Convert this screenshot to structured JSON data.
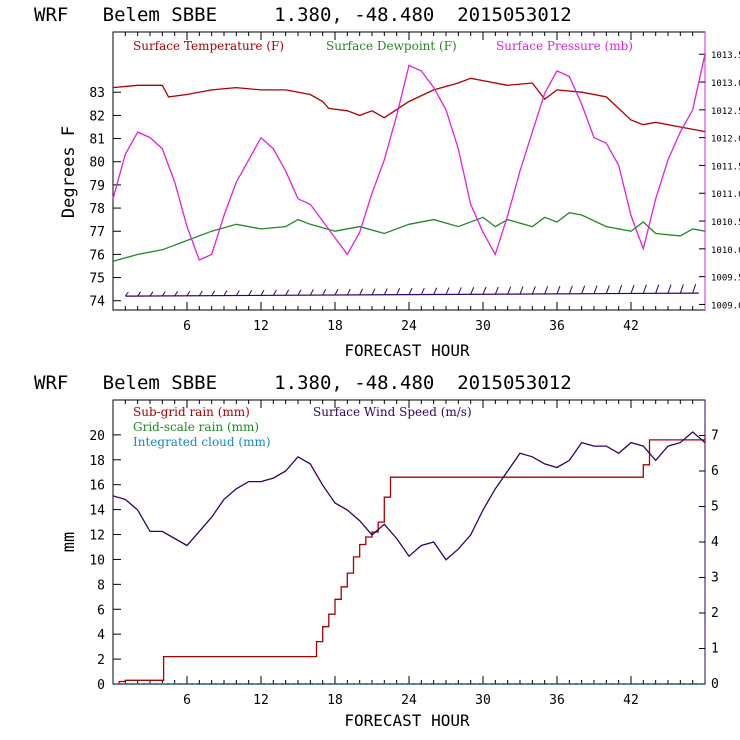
{
  "chart_data": [
    {
      "type": "line",
      "title": "WRF   Belem SBBE     1.380, -48.480  2015053012",
      "xlabel": "FORECAST HOUR",
      "ylabel": "Degrees F",
      "xlim": [
        0,
        48
      ],
      "ylim": [
        73.6,
        85.6
      ],
      "y2lim": [
        1008.9,
        1013.9
      ],
      "xticks": [
        6,
        12,
        18,
        24,
        30,
        36,
        42
      ],
      "yticks": [
        74,
        75,
        76,
        77,
        78,
        79,
        80,
        81,
        82,
        83
      ],
      "y2ticks": [
        "1009.0",
        "1009.5",
        "1010.0",
        "1010.5",
        "1011.0",
        "1011.5",
        "1012.0",
        "1012.5",
        "1013.0",
        "1013.5"
      ],
      "series": [
        {
          "name": "Surface Temperature (F)",
          "color": "#aa0000",
          "axis": "left",
          "x": [
            0,
            2,
            4,
            4.5,
            6,
            8,
            10,
            12,
            14,
            16,
            17,
            17.5,
            19,
            20,
            21,
            22,
            24,
            26,
            28,
            29,
            30,
            32,
            34,
            35,
            36,
            38,
            40,
            42,
            43,
            44,
            46,
            48
          ],
          "y": [
            83.2,
            83.3,
            83.3,
            82.8,
            82.9,
            83.1,
            83.2,
            83.1,
            83.1,
            82.9,
            82.6,
            82.3,
            82.2,
            82.0,
            82.2,
            81.9,
            82.6,
            83.1,
            83.4,
            83.6,
            83.5,
            83.3,
            83.4,
            82.7,
            83.1,
            83.0,
            82.8,
            81.8,
            81.6,
            81.7,
            81.5,
            81.3
          ]
        },
        {
          "name": "Surface Dewpoint (F)",
          "color": "#228822",
          "axis": "left",
          "x": [
            0,
            2,
            4,
            6,
            8,
            10,
            12,
            14,
            15,
            16,
            18,
            20,
            22,
            24,
            26,
            28,
            30,
            31,
            32,
            34,
            35,
            36,
            37,
            38,
            40,
            42,
            43,
            44,
            46,
            47,
            48
          ],
          "y": [
            75.7,
            76.0,
            76.2,
            76.6,
            77.0,
            77.3,
            77.1,
            77.2,
            77.5,
            77.3,
            77.0,
            77.2,
            76.9,
            77.3,
            77.5,
            77.2,
            77.6,
            77.2,
            77.5,
            77.2,
            77.6,
            77.4,
            77.8,
            77.7,
            77.2,
            77.0,
            77.4,
            76.9,
            76.8,
            77.1,
            77.0
          ]
        },
        {
          "name": "Surface Pressure (mb)",
          "color": "#dd22dd",
          "axis": "right",
          "x": [
            0,
            1,
            2,
            3,
            4,
            5,
            6,
            7,
            8,
            9,
            10,
            11,
            12,
            13,
            14,
            15,
            16,
            17,
            18,
            19,
            20,
            21,
            22,
            23,
            24,
            25,
            26,
            27,
            28,
            29,
            30,
            31,
            32,
            33,
            34,
            35,
            36,
            37,
            38,
            39,
            40,
            41,
            42,
            43,
            44,
            45,
            46,
            47,
            48
          ],
          "y": [
            1010.9,
            1011.7,
            1012.1,
            1012.0,
            1011.8,
            1011.2,
            1010.4,
            1009.8,
            1009.9,
            1010.6,
            1011.2,
            1011.6,
            1012.0,
            1011.8,
            1011.4,
            1010.9,
            1010.8,
            1010.5,
            1010.2,
            1009.9,
            1010.3,
            1011.0,
            1011.6,
            1012.4,
            1013.3,
            1013.2,
            1012.9,
            1012.5,
            1011.8,
            1010.8,
            1010.3,
            1009.9,
            1010.6,
            1011.4,
            1012.1,
            1012.8,
            1013.2,
            1013.1,
            1012.6,
            1012.0,
            1011.9,
            1011.5,
            1010.6,
            1010.0,
            1010.9,
            1011.6,
            1012.1,
            1012.5,
            1013.5
          ]
        }
      ],
      "wind_barbs": {
        "y": 74.2,
        "x_start": 1,
        "x_end": 47.5,
        "step": 1
      }
    },
    {
      "type": "line",
      "title": "WRF   Belem SBBE     1.380, -48.480  2015053012",
      "xlabel": "FORECAST HOUR",
      "ylabel": "mm",
      "xlim": [
        0,
        48
      ],
      "ylim": [
        0,
        22.8
      ],
      "y2lim": [
        0,
        8
      ],
      "xticks": [
        6,
        12,
        18,
        24,
        30,
        36,
        42
      ],
      "yticks": [
        0,
        2,
        4,
        6,
        8,
        10,
        12,
        14,
        16,
        18,
        20
      ],
      "y2ticks": [
        "0",
        "1",
        "2",
        "3",
        "4",
        "5",
        "6",
        "7"
      ],
      "series": [
        {
          "name": "Sub-grid rain (mm)",
          "color": "#aa0000",
          "axis": "left",
          "step": true,
          "x": [
            0,
            0.5,
            1,
            4,
            4.1,
            16,
            16.5,
            17,
            17.5,
            18,
            18.5,
            19,
            19.5,
            20,
            20.5,
            21,
            21.5,
            22,
            22.5,
            23,
            23.5,
            43,
            43.5,
            48
          ],
          "y": [
            0,
            0.2,
            0.3,
            0.3,
            2.2,
            2.2,
            3.4,
            4.6,
            5.6,
            6.8,
            7.8,
            8.9,
            10.2,
            11.2,
            11.8,
            12.2,
            13.0,
            15.0,
            16.6,
            16.6,
            16.6,
            17.6,
            19.6,
            19.8
          ]
        },
        {
          "name": "Grid-scale rain (mm)",
          "color": "#228822",
          "axis": "left",
          "x": [
            0,
            48
          ],
          "y": [
            0,
            0
          ]
        },
        {
          "name": "Integrated cloud (mm)",
          "color": "#1188cc",
          "axis": "left",
          "x": [
            0,
            48
          ],
          "y": [
            0,
            0
          ]
        },
        {
          "name": "Surface Wind Speed (m/s)",
          "color": "#330066",
          "axis": "right",
          "x": [
            0,
            1,
            2,
            3,
            4,
            5,
            6,
            7,
            8,
            9,
            10,
            11,
            12,
            13,
            14,
            15,
            16,
            17,
            18,
            19,
            20,
            21,
            22,
            23,
            24,
            25,
            26,
            27,
            28,
            29,
            30,
            31,
            32,
            33,
            34,
            35,
            36,
            37,
            38,
            39,
            40,
            41,
            42,
            43,
            44,
            45,
            46,
            47,
            48
          ],
          "y": [
            5.3,
            5.2,
            4.9,
            4.3,
            4.3,
            4.1,
            3.9,
            4.3,
            4.7,
            5.2,
            5.5,
            5.7,
            5.7,
            5.8,
            6.0,
            6.4,
            6.2,
            5.6,
            5.1,
            4.9,
            4.6,
            4.2,
            4.5,
            4.1,
            3.6,
            3.9,
            4.0,
            3.5,
            3.8,
            4.2,
            4.9,
            5.5,
            6.0,
            6.5,
            6.4,
            6.2,
            6.1,
            6.3,
            6.8,
            6.7,
            6.7,
            6.5,
            6.8,
            6.7,
            6.3,
            6.7,
            6.8,
            7.1,
            6.8
          ]
        }
      ]
    }
  ]
}
